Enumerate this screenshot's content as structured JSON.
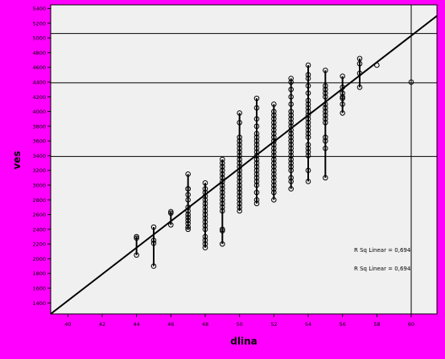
{
  "chart_data": {
    "type": "scatter",
    "xlabel": "dlina",
    "ylabel": "ves",
    "xlim": [
      39,
      61.5
    ],
    "ylim": [
      1250,
      5450
    ],
    "x_ticks": [
      "40",
      "42",
      "44",
      "46",
      "48",
      "50",
      "52",
      "54",
      "56",
      "58",
      "60"
    ],
    "x_tick_values": [
      40,
      42,
      44,
      46,
      48,
      50,
      52,
      54,
      56,
      58,
      60
    ],
    "y_ticks": [
      "1400",
      "1600",
      "1800",
      "2000",
      "2200",
      "2400",
      "2600",
      "2800",
      "3000",
      "3200",
      "3400",
      "3600",
      "3800",
      "4000",
      "4200",
      "4400",
      "4600",
      "4800",
      "5000",
      "5200",
      "5400"
    ],
    "y_tick_values": [
      1400,
      1600,
      1800,
      2000,
      2200,
      2400,
      2600,
      2800,
      3000,
      3200,
      3400,
      3600,
      3800,
      4000,
      4200,
      4400,
      4600,
      4800,
      5000,
      5200,
      5400
    ],
    "reference_lines": {
      "horizontal": [
        5060,
        4390,
        3390
      ],
      "vertical": [
        60
      ]
    },
    "fit_line": {
      "x1": 39,
      "y1": 1250,
      "x2": 61.5,
      "y2": 5300
    },
    "annotations": [
      "R Sq Linear = 0,694",
      "R Sq Linear = 0,694"
    ],
    "grid": false,
    "legend": "none",
    "columns": [
      {
        "x": 44,
        "y": [
          2280,
          2300,
          2050
        ]
      },
      {
        "x": 45,
        "y": [
          2430,
          2210,
          2250,
          1900
        ]
      },
      {
        "x": 46,
        "y": [
          2620,
          2460,
          2640
        ]
      },
      {
        "x": 47,
        "y": [
          3150,
          2950,
          2950,
          2870,
          2800,
          2700,
          2650,
          2600,
          2560,
          2520,
          2480,
          2430,
          2400
        ]
      },
      {
        "x": 48,
        "y": [
          3030,
          2950,
          2900,
          2850,
          2800,
          2750,
          2700,
          2650,
          2600,
          2550,
          2500,
          2450,
          2400,
          2300,
          2250,
          2200,
          2150
        ]
      },
      {
        "x": 49,
        "y": [
          3350,
          3300,
          3250,
          3200,
          3150,
          3100,
          3050,
          3000,
          2950,
          2900,
          2850,
          2800,
          2750,
          2700,
          2650,
          2400,
          2380,
          2200
        ]
      },
      {
        "x": 50,
        "y": [
          3980,
          3850,
          3650,
          3600,
          3550,
          3500,
          3450,
          3400,
          3350,
          3300,
          3250,
          3200,
          3150,
          3100,
          3050,
          3000,
          2950,
          2900,
          2850,
          2800,
          2750,
          2700,
          2650
        ]
      },
      {
        "x": 51,
        "y": [
          4180,
          4050,
          3900,
          3800,
          3700,
          3650,
          3600,
          3550,
          3500,
          3450,
          3400,
          3350,
          3300,
          3250,
          3200,
          3150,
          3100,
          3050,
          3000,
          2900,
          2800,
          2750
        ]
      },
      {
        "x": 52,
        "y": [
          4100,
          4000,
          3950,
          3900,
          3850,
          3800,
          3750,
          3700,
          3650,
          3600,
          3550,
          3500,
          3450,
          3400,
          3350,
          3300,
          3250,
          3200,
          3150,
          3100,
          3050,
          3000,
          2950,
          2900,
          2800
        ]
      },
      {
        "x": 53,
        "y": [
          4450,
          4400,
          4300,
          4200,
          4100,
          4000,
          3950,
          3900,
          3850,
          3800,
          3750,
          3700,
          3650,
          3600,
          3550,
          3500,
          3450,
          3400,
          3350,
          3300,
          3250,
          3200,
          3100,
          3050,
          2950
        ]
      },
      {
        "x": 54,
        "y": [
          4630,
          4500,
          4450,
          4350,
          4250,
          4150,
          4100,
          4050,
          4000,
          3950,
          3900,
          3850,
          3800,
          3750,
          3700,
          3650,
          3550,
          3500,
          3450,
          3400,
          3200,
          3050
        ]
      },
      {
        "x": 55,
        "y": [
          4560,
          4350,
          4300,
          4250,
          4200,
          4100,
          4050,
          4000,
          3950,
          3900,
          3850,
          3650,
          3600,
          3500,
          3100
        ]
      },
      {
        "x": 56,
        "y": [
          4480,
          4330,
          4250,
          4200,
          4180,
          4100,
          3980
        ]
      },
      {
        "x": 57,
        "y": [
          4720,
          4650,
          4520,
          4330
        ]
      },
      {
        "x": 58,
        "y": [
          4630
        ]
      },
      {
        "x": 60,
        "y": [
          4400
        ]
      }
    ]
  }
}
